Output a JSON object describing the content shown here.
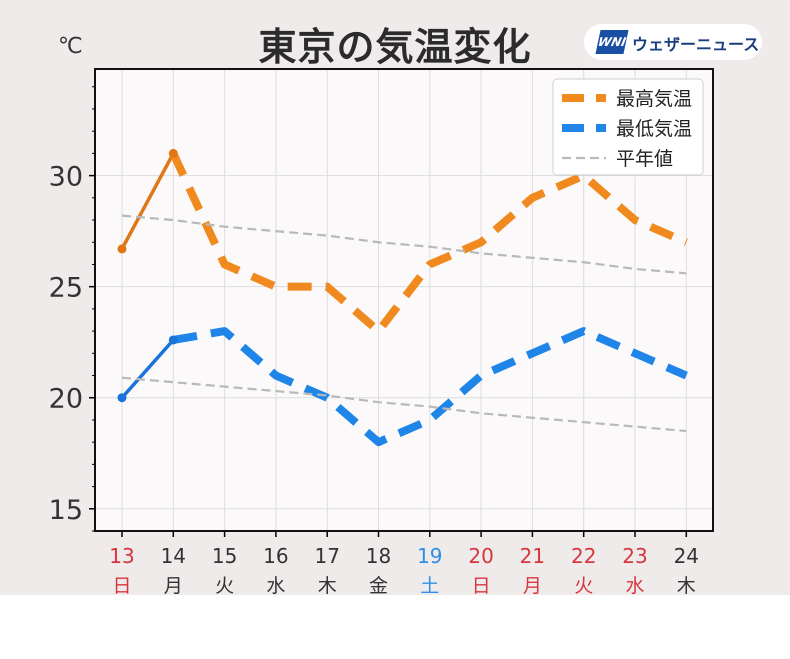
{
  "header": {
    "title": "東京の気温変化",
    "unit": "℃",
    "brand_logo": "WNI",
    "brand_name": "ウェザーニュース"
  },
  "colors": {
    "max": "#f08a1e",
    "max_observed": "#e07614",
    "min": "#1f85e8",
    "min_observed": "#1a73d8",
    "normal": "#b9b9b9",
    "sunday_holiday": "#d8363e",
    "saturday": "#2f8fe6",
    "weekday": "#333333",
    "plot_bg": "#fbf9fa",
    "grid": "#dddddd"
  },
  "chart_data": {
    "type": "line",
    "categories": [
      "13",
      "14",
      "15",
      "16",
      "17",
      "18",
      "19",
      "20",
      "21",
      "22",
      "23",
      "24"
    ],
    "weekdays": [
      "日",
      "月",
      "火",
      "水",
      "木",
      "金",
      "土",
      "日",
      "月",
      "火",
      "水",
      "木"
    ],
    "day_colors": [
      "sunday_holiday",
      "weekday",
      "weekday",
      "weekday",
      "weekday",
      "weekday",
      "saturday",
      "sunday_holiday",
      "sunday_holiday",
      "sunday_holiday",
      "sunday_holiday",
      "weekday"
    ],
    "ylim": [
      14,
      34.8
    ],
    "yticks": [
      15,
      20,
      25,
      30
    ],
    "grid": true,
    "legend_position": "top-right",
    "observed_through_index": 1,
    "series": [
      {
        "name": "最高気温",
        "color_key": "max",
        "style": "thick-dashed",
        "values": [
          26.7,
          31.0,
          26.0,
          25.0,
          25.0,
          23.0,
          26.0,
          27.0,
          29.0,
          30.0,
          28.0,
          27.0
        ]
      },
      {
        "name": "最低気温",
        "color_key": "min",
        "style": "thick-dashed",
        "values": [
          20.0,
          22.6,
          23.0,
          21.0,
          20.0,
          18.0,
          19.0,
          21.0,
          22.0,
          23.0,
          22.0,
          21.0
        ]
      },
      {
        "name": "平年値",
        "color_key": "normal",
        "style": "thin-dashed",
        "values": [
          28.2,
          28.0,
          27.7,
          27.5,
          27.3,
          27.0,
          26.8,
          26.5,
          26.3,
          26.1,
          25.8,
          25.6
        ]
      },
      {
        "name": "",
        "color_key": "normal",
        "style": "thin-dashed",
        "legend": false,
        "values": [
          20.9,
          20.7,
          20.5,
          20.3,
          20.1,
          19.8,
          19.6,
          19.3,
          19.1,
          18.9,
          18.7,
          18.5
        ]
      }
    ]
  }
}
